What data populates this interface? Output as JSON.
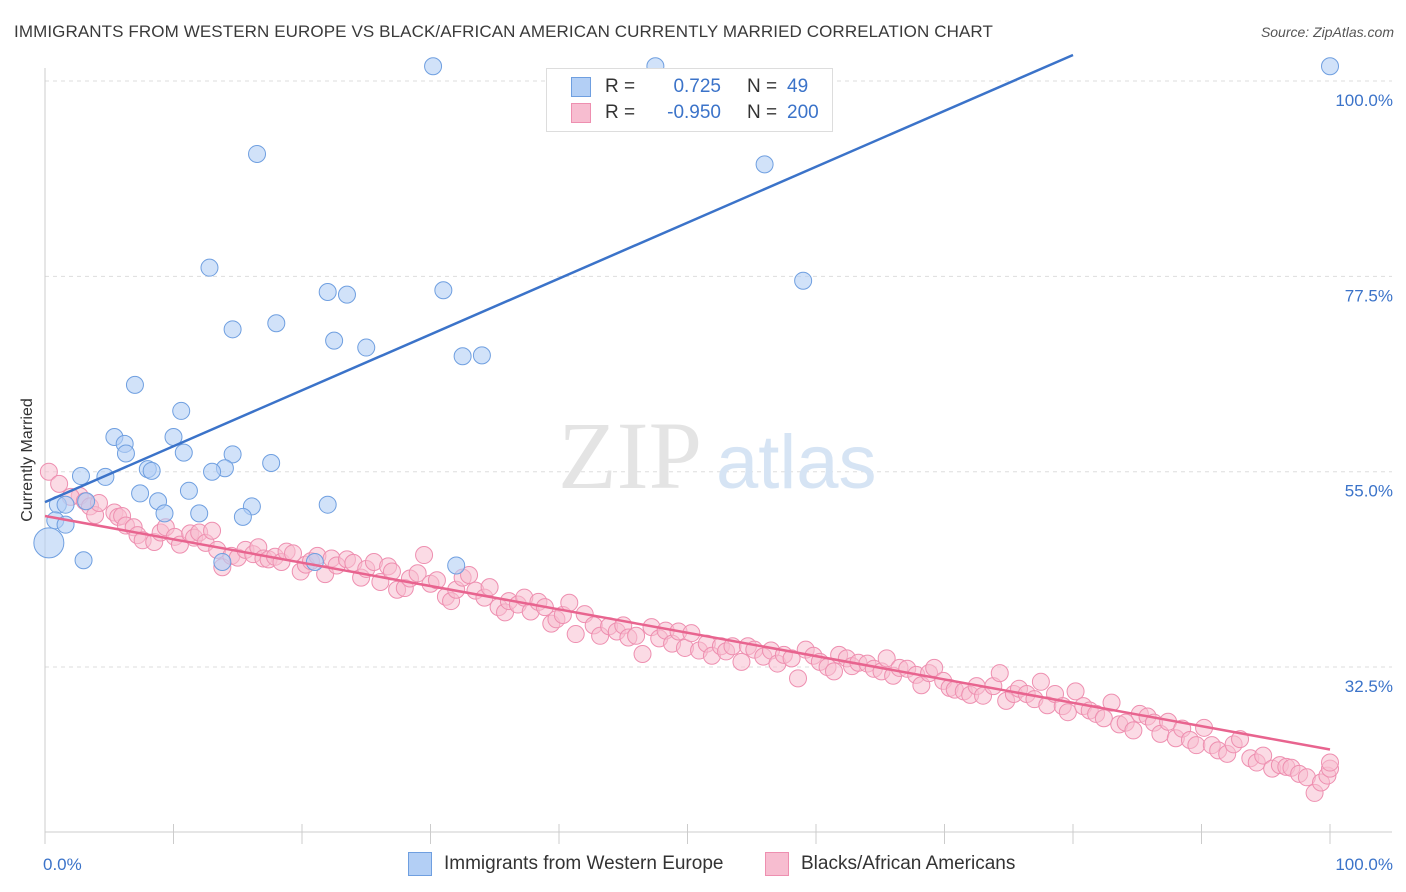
{
  "title": "IMMIGRANTS FROM WESTERN EUROPE VS BLACK/AFRICAN AMERICAN CURRENTLY MARRIED CORRELATION CHART",
  "source": "Source: ZipAtlas.com",
  "watermark": {
    "zip": "ZIP",
    "atlas": "atlas"
  },
  "legend_top": {
    "rows": [
      {
        "r_label": "R =",
        "r_value": "0.725",
        "n_label": "N =",
        "n_value": "49"
      },
      {
        "r_label": "R =",
        "r_value": "-0.950",
        "n_label": "N =",
        "n_value": "200"
      }
    ]
  },
  "legend_bottom": {
    "items": [
      {
        "label": "Immigrants from Western Europe"
      },
      {
        "label": "Blacks/African Americans"
      }
    ]
  },
  "colors": {
    "blue_fill": "#b3cff5",
    "blue_stroke": "#6f9fe0",
    "blue_line": "#3b73c9",
    "pink_fill": "#f7bdd0",
    "pink_stroke": "#ee8fb0",
    "pink_line": "#e8648f",
    "tick_label": "#3b73c9",
    "grid": "#dddddd"
  },
  "chart_data": {
    "type": "scatter",
    "title": "IMMIGRANTS FROM WESTERN EUROPE VS BLACK/AFRICAN AMERICAN CURRENTLY MARRIED CORRELATION CHART",
    "xlabel": "",
    "ylabel": "Currently Married",
    "xlim": [
      0,
      100
    ],
    "ylim": [
      13.5,
      101.5
    ],
    "x_tick_labels": [
      "0.0%",
      "100.0%"
    ],
    "y_ticks": [
      32.5,
      55.0,
      77.5,
      100.0
    ],
    "y_tick_labels": [
      "32.5%",
      "55.0%",
      "77.5%",
      "100.0%"
    ],
    "grid": true,
    "legend": "top-center",
    "series": [
      {
        "name": "Immigrants from Western Europe",
        "r": 0.725,
        "n": 49,
        "trend": [
          [
            0,
            51.5
          ],
          [
            80,
            103.0
          ]
        ],
        "points": [
          [
            30.2,
            101.7
          ],
          [
            100,
            101.7
          ],
          [
            47.5,
            101.7
          ],
          [
            16.5,
            91.6
          ],
          [
            56.0,
            90.4
          ],
          [
            12.8,
            78.5
          ],
          [
            22.0,
            75.7
          ],
          [
            23.5,
            75.4
          ],
          [
            31.0,
            75.9
          ],
          [
            59.0,
            77.0
          ],
          [
            18.0,
            72.1
          ],
          [
            14.6,
            71.4
          ],
          [
            22.5,
            70.1
          ],
          [
            25.0,
            69.3
          ],
          [
            32.5,
            68.3
          ],
          [
            34.0,
            68.4
          ],
          [
            7.0,
            65.0
          ],
          [
            10.6,
            62.0
          ],
          [
            5.4,
            59.0
          ],
          [
            10.0,
            59.0
          ],
          [
            6.2,
            58.2
          ],
          [
            6.3,
            57.1
          ],
          [
            10.8,
            57.2
          ],
          [
            14.6,
            57.0
          ],
          [
            14.0,
            55.4
          ],
          [
            8.0,
            55.3
          ],
          [
            8.3,
            55.1
          ],
          [
            13.0,
            55.0
          ],
          [
            17.6,
            56.0
          ],
          [
            2.8,
            54.5
          ],
          [
            4.7,
            54.4
          ],
          [
            7.4,
            52.5
          ],
          [
            11.2,
            52.8
          ],
          [
            8.8,
            51.6
          ],
          [
            1.0,
            51.2
          ],
          [
            16.1,
            51.0
          ],
          [
            1.6,
            51.2
          ],
          [
            3.2,
            51.6
          ],
          [
            12.0,
            50.2
          ],
          [
            22.0,
            51.2
          ],
          [
            9.3,
            50.2
          ],
          [
            15.4,
            49.8
          ],
          [
            0.8,
            49.4
          ],
          [
            1.6,
            48.9
          ],
          [
            0.3,
            46.8
          ],
          [
            3.0,
            44.8
          ],
          [
            13.8,
            44.6
          ],
          [
            21.0,
            44.6
          ],
          [
            32.0,
            44.2
          ]
        ]
      },
      {
        "name": "Blacks/African Americans",
        "r": -0.95,
        "n": 200,
        "trend": [
          [
            0,
            49.9
          ],
          [
            100,
            23.0
          ]
        ],
        "points": [
          [
            0.3,
            55.0
          ],
          [
            1.1,
            53.6
          ],
          [
            2.7,
            52.2
          ],
          [
            2.0,
            52.1
          ],
          [
            3.1,
            51.6
          ],
          [
            3.5,
            51.0
          ],
          [
            3.9,
            50.0
          ],
          [
            4.2,
            51.4
          ],
          [
            5.4,
            50.3
          ],
          [
            5.7,
            49.8
          ],
          [
            6.0,
            49.9
          ],
          [
            6.3,
            48.8
          ],
          [
            6.9,
            48.6
          ],
          [
            7.2,
            47.7
          ],
          [
            7.6,
            47.1
          ],
          [
            8.5,
            46.9
          ],
          [
            9.0,
            48.0
          ],
          [
            9.4,
            48.6
          ],
          [
            10.1,
            47.5
          ],
          [
            10.5,
            46.6
          ],
          [
            11.3,
            47.9
          ],
          [
            11.6,
            47.4
          ],
          [
            12.0,
            48.0
          ],
          [
            12.5,
            46.8
          ],
          [
            13.0,
            48.2
          ],
          [
            13.4,
            46.0
          ],
          [
            13.8,
            44.0
          ],
          [
            14.5,
            45.3
          ],
          [
            15.0,
            45.1
          ],
          [
            15.6,
            46.0
          ],
          [
            16.2,
            45.5
          ],
          [
            16.6,
            46.3
          ],
          [
            17.0,
            45.0
          ],
          [
            17.4,
            44.9
          ],
          [
            17.9,
            45.2
          ],
          [
            18.4,
            44.6
          ],
          [
            18.8,
            45.8
          ],
          [
            19.3,
            45.6
          ],
          [
            19.9,
            43.5
          ],
          [
            20.3,
            44.3
          ],
          [
            20.7,
            44.7
          ],
          [
            21.2,
            45.3
          ],
          [
            21.8,
            43.2
          ],
          [
            22.3,
            45.0
          ],
          [
            22.7,
            44.2
          ],
          [
            23.5,
            44.9
          ],
          [
            24.0,
            44.5
          ],
          [
            24.6,
            42.8
          ],
          [
            25.0,
            43.8
          ],
          [
            25.6,
            44.6
          ],
          [
            26.1,
            42.3
          ],
          [
            26.7,
            44.1
          ],
          [
            27.0,
            43.5
          ],
          [
            27.4,
            41.4
          ],
          [
            28.0,
            41.6
          ],
          [
            28.4,
            42.7
          ],
          [
            29.0,
            43.3
          ],
          [
            29.5,
            45.4
          ],
          [
            30.0,
            42.1
          ],
          [
            30.5,
            42.5
          ],
          [
            31.2,
            40.6
          ],
          [
            31.6,
            40.1
          ],
          [
            32.0,
            41.4
          ],
          [
            32.5,
            42.8
          ],
          [
            33.0,
            43.1
          ],
          [
            33.5,
            41.3
          ],
          [
            34.2,
            40.5
          ],
          [
            34.6,
            41.7
          ],
          [
            35.3,
            39.4
          ],
          [
            35.8,
            38.8
          ],
          [
            36.1,
            40.1
          ],
          [
            36.8,
            39.7
          ],
          [
            37.3,
            40.5
          ],
          [
            37.8,
            38.9
          ],
          [
            38.4,
            40.0
          ],
          [
            38.9,
            39.4
          ],
          [
            39.4,
            37.5
          ],
          [
            39.8,
            38.0
          ],
          [
            40.3,
            38.5
          ],
          [
            40.8,
            39.9
          ],
          [
            41.3,
            36.3
          ],
          [
            42.0,
            38.6
          ],
          [
            42.7,
            37.3
          ],
          [
            43.2,
            36.1
          ],
          [
            43.9,
            37.2
          ],
          [
            44.5,
            36.6
          ],
          [
            45.0,
            37.3
          ],
          [
            45.4,
            35.9
          ],
          [
            46.0,
            36.1
          ],
          [
            46.5,
            34.0
          ],
          [
            47.2,
            37.1
          ],
          [
            47.8,
            35.8
          ],
          [
            48.3,
            36.7
          ],
          [
            48.8,
            35.2
          ],
          [
            49.3,
            36.6
          ],
          [
            49.8,
            34.7
          ],
          [
            50.3,
            36.4
          ],
          [
            50.9,
            34.4
          ],
          [
            51.5,
            35.2
          ],
          [
            51.9,
            33.8
          ],
          [
            52.6,
            34.9
          ],
          [
            53.0,
            34.3
          ],
          [
            53.5,
            34.9
          ],
          [
            54.2,
            33.1
          ],
          [
            54.7,
            34.9
          ],
          [
            55.2,
            34.5
          ],
          [
            55.9,
            33.7
          ],
          [
            56.5,
            34.4
          ],
          [
            57.0,
            32.9
          ],
          [
            57.5,
            33.9
          ],
          [
            58.1,
            33.5
          ],
          [
            58.6,
            31.2
          ],
          [
            59.2,
            34.5
          ],
          [
            59.8,
            33.8
          ],
          [
            60.3,
            33.1
          ],
          [
            60.9,
            32.5
          ],
          [
            61.4,
            32.0
          ],
          [
            61.8,
            33.9
          ],
          [
            62.4,
            33.5
          ],
          [
            62.8,
            32.6
          ],
          [
            63.3,
            33.0
          ],
          [
            64.0,
            32.9
          ],
          [
            64.5,
            32.3
          ],
          [
            65.1,
            32.0
          ],
          [
            65.5,
            33.5
          ],
          [
            66.0,
            31.5
          ],
          [
            66.5,
            32.4
          ],
          [
            67.1,
            32.3
          ],
          [
            67.8,
            31.6
          ],
          [
            68.2,
            30.4
          ],
          [
            68.8,
            31.8
          ],
          [
            69.2,
            32.4
          ],
          [
            69.9,
            30.9
          ],
          [
            70.4,
            30.1
          ],
          [
            70.8,
            29.9
          ],
          [
            71.5,
            29.7
          ],
          [
            72.0,
            29.3
          ],
          [
            72.5,
            30.3
          ],
          [
            73.0,
            29.2
          ],
          [
            73.8,
            30.3
          ],
          [
            74.3,
            31.8
          ],
          [
            74.8,
            28.6
          ],
          [
            75.4,
            29.4
          ],
          [
            75.8,
            30.0
          ],
          [
            76.4,
            29.4
          ],
          [
            77.0,
            28.8
          ],
          [
            77.5,
            30.8
          ],
          [
            78.0,
            28.1
          ],
          [
            78.6,
            29.4
          ],
          [
            79.2,
            28.0
          ],
          [
            79.6,
            27.3
          ],
          [
            80.2,
            29.7
          ],
          [
            80.8,
            28.0
          ],
          [
            81.3,
            27.5
          ],
          [
            81.8,
            27.1
          ],
          [
            82.4,
            26.6
          ],
          [
            83.0,
            28.4
          ],
          [
            83.6,
            25.9
          ],
          [
            84.1,
            26.1
          ],
          [
            84.7,
            25.2
          ],
          [
            85.2,
            27.1
          ],
          [
            85.8,
            26.8
          ],
          [
            86.3,
            26.1
          ],
          [
            86.8,
            24.8
          ],
          [
            87.4,
            26.2
          ],
          [
            88.0,
            24.3
          ],
          [
            88.5,
            25.4
          ],
          [
            89.1,
            24.1
          ],
          [
            89.6,
            23.5
          ],
          [
            90.2,
            25.5
          ],
          [
            90.8,
            23.5
          ],
          [
            91.3,
            22.9
          ],
          [
            92.0,
            22.5
          ],
          [
            92.5,
            23.6
          ],
          [
            93.0,
            24.2
          ],
          [
            93.8,
            22.0
          ],
          [
            94.3,
            21.5
          ],
          [
            94.8,
            22.3
          ],
          [
            95.5,
            20.8
          ],
          [
            96.1,
            21.2
          ],
          [
            96.6,
            21.0
          ],
          [
            97.0,
            20.9
          ],
          [
            97.6,
            20.2
          ],
          [
            98.2,
            19.8
          ],
          [
            98.8,
            18.0
          ],
          [
            99.3,
            19.2
          ],
          [
            99.8,
            20.0
          ],
          [
            100.0,
            20.8
          ],
          [
            100.0,
            21.5
          ]
        ]
      }
    ]
  }
}
